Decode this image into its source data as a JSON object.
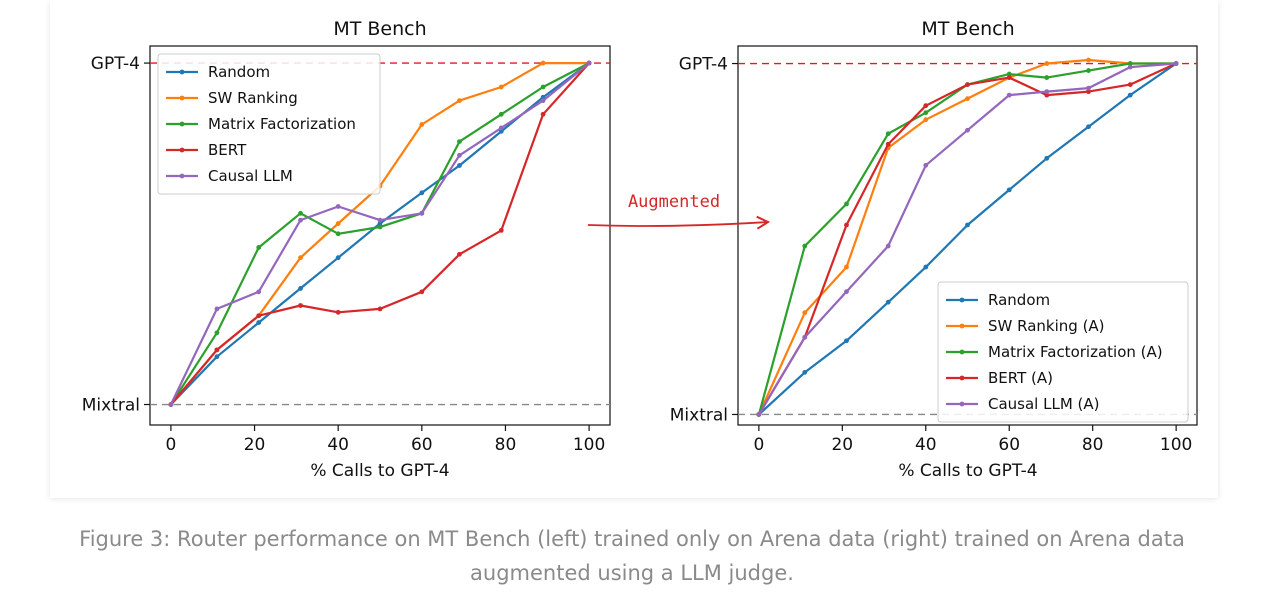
{
  "chart_data": [
    {
      "type": "line",
      "title": "MT Bench",
      "xlabel": "% Calls to GPT-4",
      "xlim": [
        -5,
        105
      ],
      "ylim": [
        -0.06,
        1.05
      ],
      "xticks": [
        0,
        20,
        40,
        60,
        80,
        100
      ],
      "yticks": [
        {
          "value": 0,
          "label": "Mixtral"
        },
        {
          "value": 1,
          "label": "GPT-4"
        }
      ],
      "reference_lines": [
        {
          "label": "GPT-4",
          "value": 1,
          "color": "#e41a1c",
          "style": "dashed"
        },
        {
          "label": "Mixtral",
          "value": 0,
          "color": "#888888",
          "style": "dashed"
        }
      ],
      "legend_position": "top-left",
      "series": [
        {
          "name": "Random",
          "color": "#1f77b4",
          "x": [
            0,
            11,
            21,
            31,
            40,
            50,
            60,
            69,
            79,
            89,
            100
          ],
          "y": [
            0,
            0.14,
            0.24,
            0.34,
            0.43,
            0.53,
            0.62,
            0.7,
            0.8,
            0.9,
            1.0
          ]
        },
        {
          "name": "SW Ranking",
          "color": "#ff7f0e",
          "x": [
            0,
            11,
            21,
            31,
            40,
            50,
            60,
            69,
            79,
            89,
            100
          ],
          "y": [
            0,
            0.16,
            0.26,
            0.43,
            0.53,
            0.64,
            0.82,
            0.89,
            0.93,
            1.0,
            1.0
          ]
        },
        {
          "name": "Matrix Factorization",
          "color": "#2ca02c",
          "x": [
            0,
            11,
            21,
            31,
            40,
            50,
            60,
            69,
            79,
            89,
            100
          ],
          "y": [
            0,
            0.21,
            0.46,
            0.56,
            0.5,
            0.52,
            0.56,
            0.77,
            0.85,
            0.93,
            1.0
          ]
        },
        {
          "name": "BERT",
          "color": "#d62728",
          "x": [
            0,
            11,
            21,
            31,
            40,
            50,
            60,
            69,
            79,
            89,
            100
          ],
          "y": [
            0,
            0.16,
            0.26,
            0.29,
            0.27,
            0.28,
            0.33,
            0.44,
            0.51,
            0.85,
            1.0
          ]
        },
        {
          "name": "Causal LLM",
          "color": "#9467bd",
          "x": [
            0,
            11,
            21,
            31,
            40,
            50,
            60,
            69,
            79,
            89,
            100
          ],
          "y": [
            0,
            0.28,
            0.33,
            0.54,
            0.58,
            0.54,
            0.56,
            0.73,
            0.81,
            0.89,
            1.0
          ]
        }
      ]
    },
    {
      "type": "line",
      "title": "MT Bench",
      "xlabel": "% Calls to GPT-4",
      "xlim": [
        -5,
        105
      ],
      "ylim": [
        -0.03,
        1.05
      ],
      "xticks": [
        0,
        20,
        40,
        60,
        80,
        100
      ],
      "yticks": [
        {
          "value": 0,
          "label": "Mixtral"
        },
        {
          "value": 1,
          "label": "GPT-4"
        }
      ],
      "reference_lines": [
        {
          "label": "GPT-4",
          "value": 1,
          "color": "#e41a1c",
          "style": "dashed"
        },
        {
          "label": "Mixtral",
          "value": 0,
          "color": "#888888",
          "style": "dashed"
        }
      ],
      "legend_position": "bottom-right",
      "series": [
        {
          "name": "Random",
          "color": "#1f77b4",
          "x": [
            0,
            11,
            21,
            31,
            40,
            50,
            60,
            69,
            79,
            89,
            100
          ],
          "y": [
            0,
            0.12,
            0.21,
            0.32,
            0.42,
            0.54,
            0.64,
            0.73,
            0.82,
            0.91,
            1.0
          ]
        },
        {
          "name": "SW Ranking (A)",
          "color": "#ff7f0e",
          "x": [
            0,
            11,
            21,
            31,
            40,
            50,
            60,
            69,
            79,
            89,
            100
          ],
          "y": [
            0,
            0.29,
            0.42,
            0.76,
            0.84,
            0.9,
            0.96,
            1.0,
            1.01,
            1.0,
            1.0
          ]
        },
        {
          "name": "Matrix Factorization (A)",
          "color": "#2ca02c",
          "x": [
            0,
            11,
            21,
            31,
            40,
            50,
            60,
            69,
            79,
            89,
            100
          ],
          "y": [
            0,
            0.48,
            0.6,
            0.8,
            0.86,
            0.94,
            0.97,
            0.96,
            0.98,
            1.0,
            1.0
          ]
        },
        {
          "name": "BERT (A)",
          "color": "#d62728",
          "x": [
            0,
            11,
            21,
            31,
            40,
            50,
            60,
            69,
            79,
            89,
            100
          ],
          "y": [
            0,
            0.22,
            0.54,
            0.77,
            0.88,
            0.94,
            0.96,
            0.91,
            0.92,
            0.94,
            1.0
          ]
        },
        {
          "name": "Causal LLM (A)",
          "color": "#9467bd",
          "x": [
            0,
            11,
            21,
            31,
            40,
            50,
            60,
            69,
            79,
            89,
            100
          ],
          "y": [
            0,
            0.22,
            0.35,
            0.48,
            0.71,
            0.81,
            0.91,
            0.92,
            0.93,
            0.99,
            1.0
          ]
        }
      ]
    }
  ],
  "annotation": {
    "text": "Augmented",
    "color": "#d62728"
  },
  "caption": {
    "line1": "Figure 3: Router performance on MT Bench (left) trained only on Arena data (right) trained on Arena data",
    "line2": "augmented using a LLM judge."
  }
}
